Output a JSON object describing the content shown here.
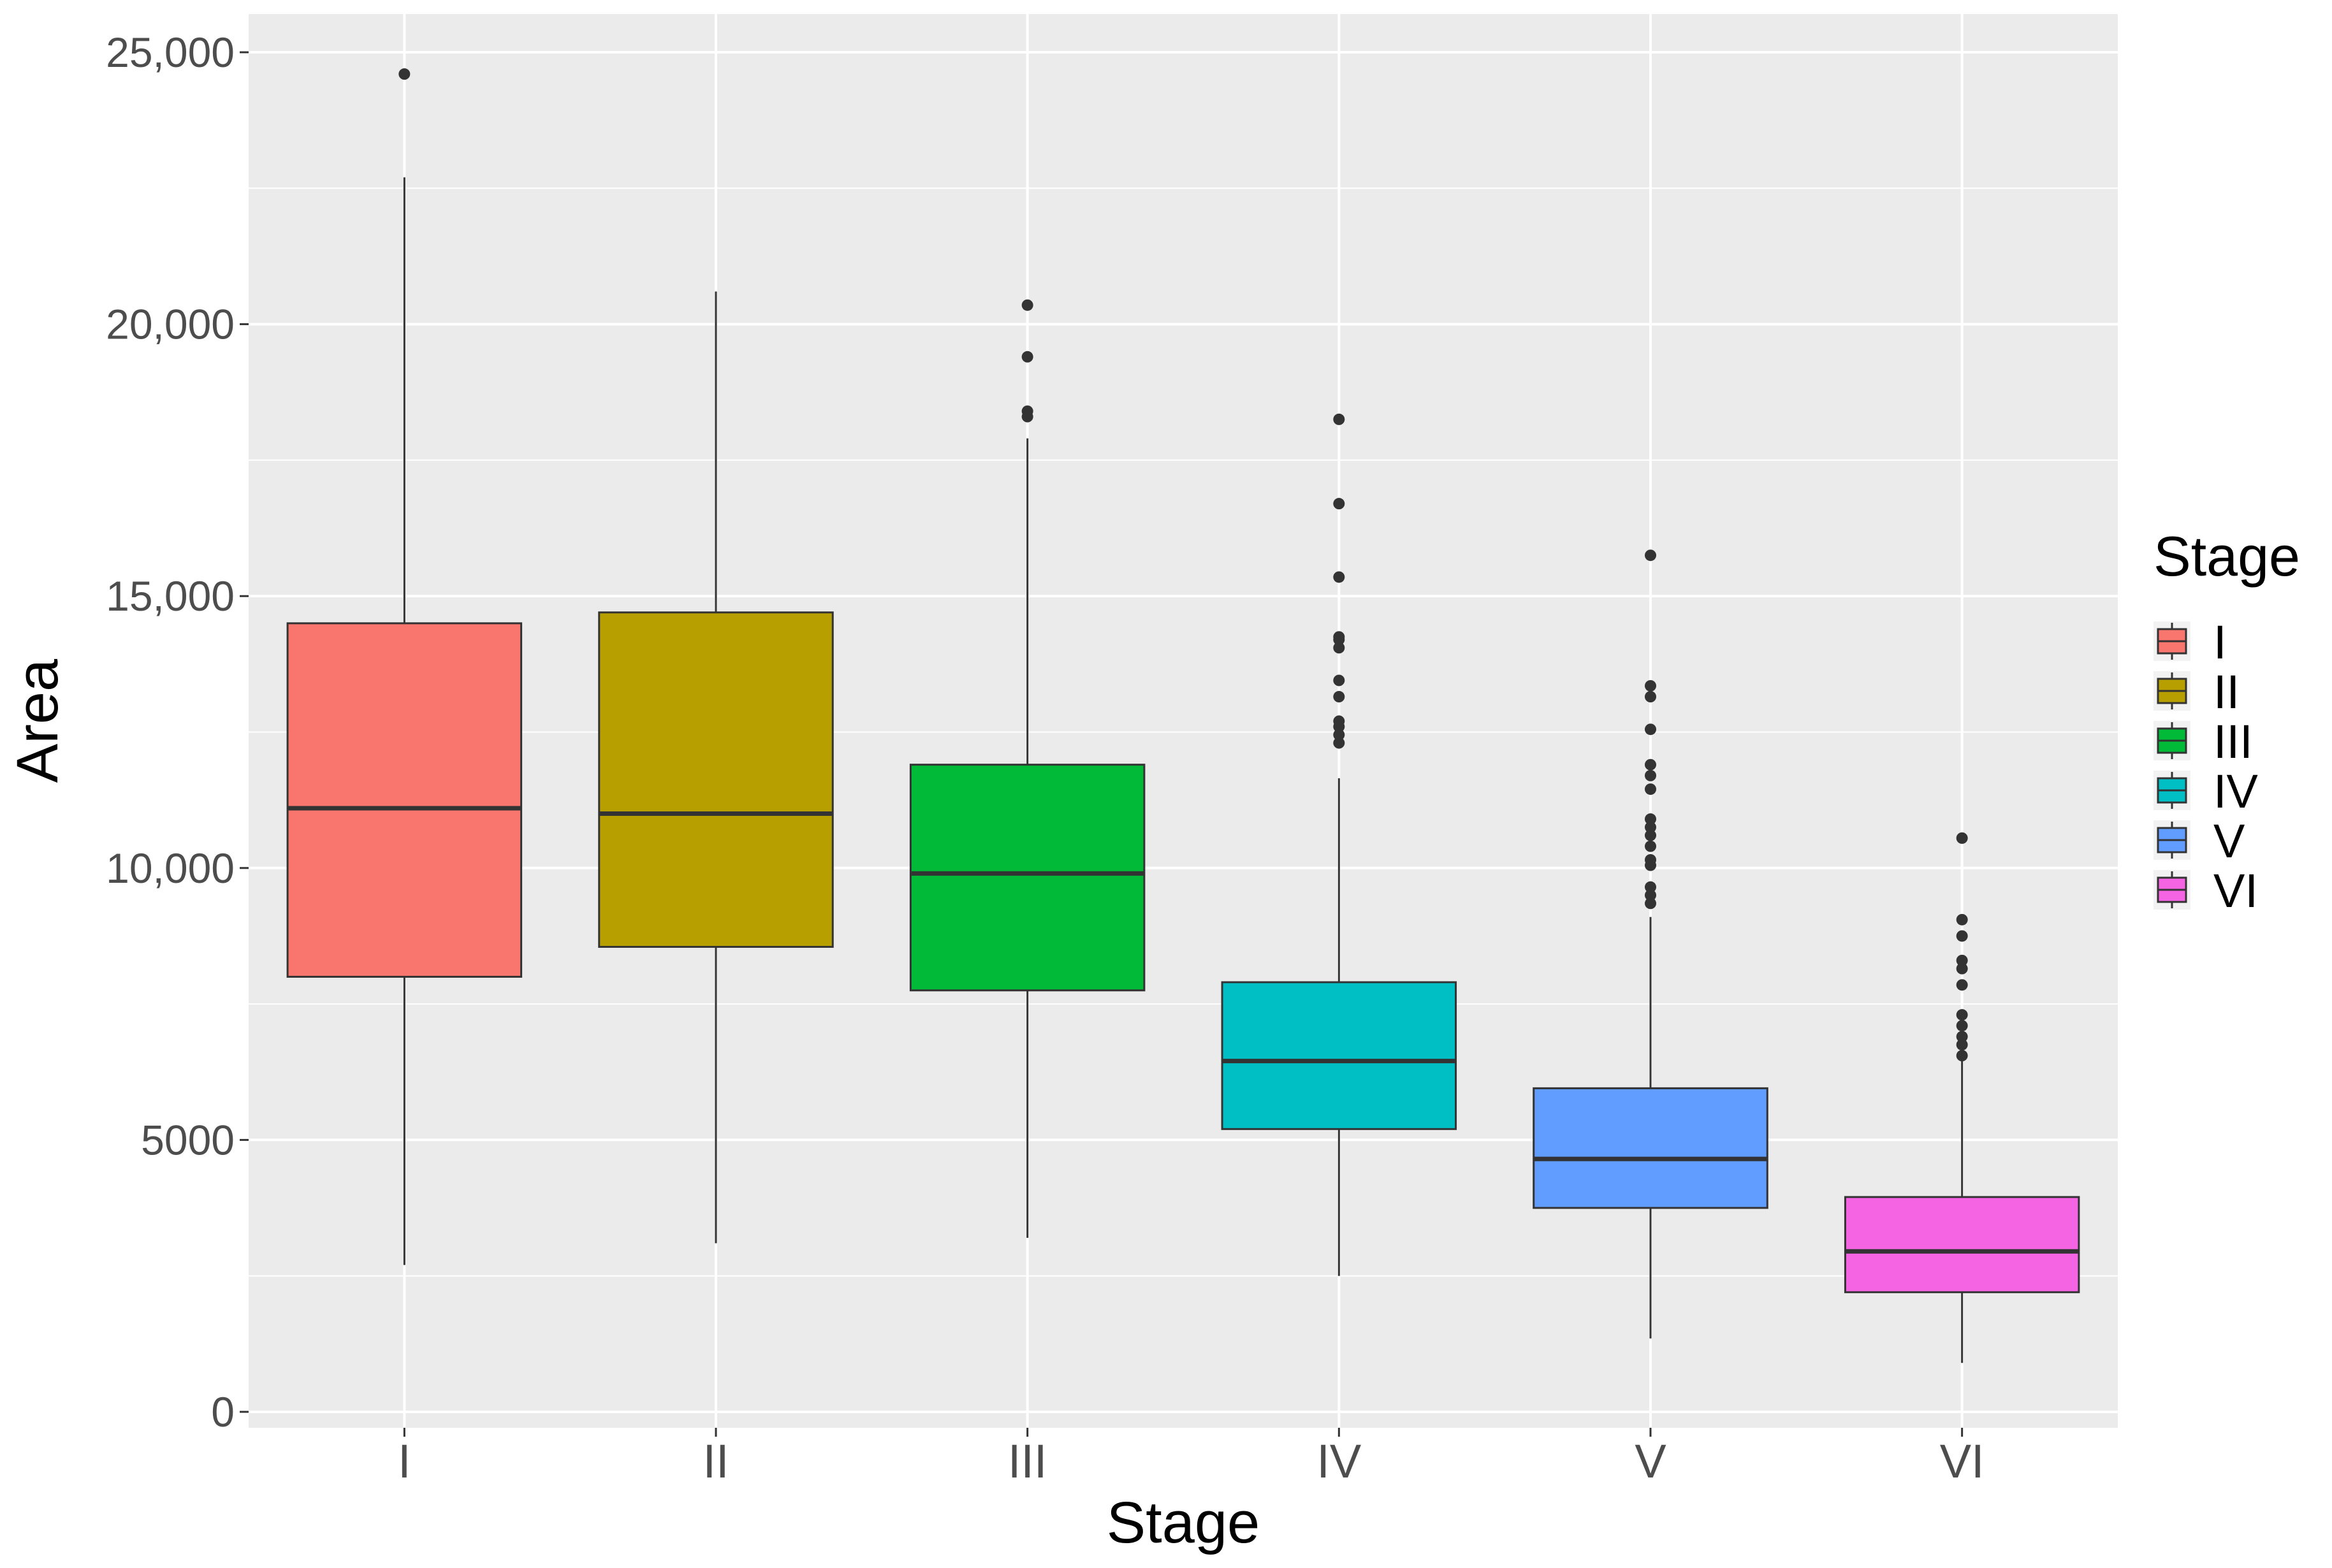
{
  "chart_data": {
    "type": "boxplot",
    "title": "",
    "xlabel": "Stage",
    "ylabel": "Area",
    "categories": [
      "I",
      "II",
      "III",
      "IV",
      "V",
      "VI"
    ],
    "ylim": [
      -500,
      25500
    ],
    "yticks": [
      0,
      5000,
      10000,
      15000,
      20000,
      25000
    ],
    "ytick_labels": [
      "0",
      "5000",
      "10,000",
      "15,000",
      "20,000",
      "25,000"
    ],
    "grid": true,
    "legend": {
      "title": "Stage",
      "position": "right"
    },
    "boxes": [
      {
        "category": "I",
        "color": "#F8766D",
        "lower_whisker": 2700,
        "q1": 8000,
        "median": 11100,
        "q3": 14500,
        "upper_whisker": 22700,
        "outliers": [
          24600
        ]
      },
      {
        "category": "II",
        "color": "#B79F00",
        "lower_whisker": 3100,
        "q1": 8550,
        "median": 11000,
        "q3": 14700,
        "upper_whisker": 20600,
        "outliers": []
      },
      {
        "category": "III",
        "color": "#00BA38",
        "lower_whisker": 3200,
        "q1": 7750,
        "median": 9900,
        "q3": 11900,
        "upper_whisker": 17900,
        "outliers": [
          18300,
          18400,
          19400,
          20350
        ]
      },
      {
        "category": "IV",
        "color": "#00BFC4",
        "lower_whisker": 2500,
        "q1": 5200,
        "median": 6450,
        "q3": 7900,
        "upper_whisker": 11650,
        "outliers": [
          12300,
          12450,
          12600,
          12700,
          13150,
          13450,
          14050,
          14200,
          14250,
          15350,
          16700,
          18250
        ]
      },
      {
        "category": "V",
        "color": "#619CFF",
        "lower_whisker": 1350,
        "q1": 3750,
        "median": 4650,
        "q3": 5950,
        "upper_whisker": 9100,
        "outliers": [
          9350,
          9500,
          9650,
          10050,
          10150,
          10400,
          10600,
          10750,
          10900,
          11450,
          11700,
          11900,
          12550,
          13150,
          13350,
          15750
        ]
      },
      {
        "category": "VI",
        "color": "#F564E3",
        "lower_whisker": 900,
        "q1": 2200,
        "median": 2950,
        "q3": 3950,
        "upper_whisker": 6450,
        "outliers": [
          6550,
          6750,
          6900,
          7100,
          7300,
          7850,
          8150,
          8300,
          8750,
          9050,
          10550
        ]
      }
    ]
  }
}
